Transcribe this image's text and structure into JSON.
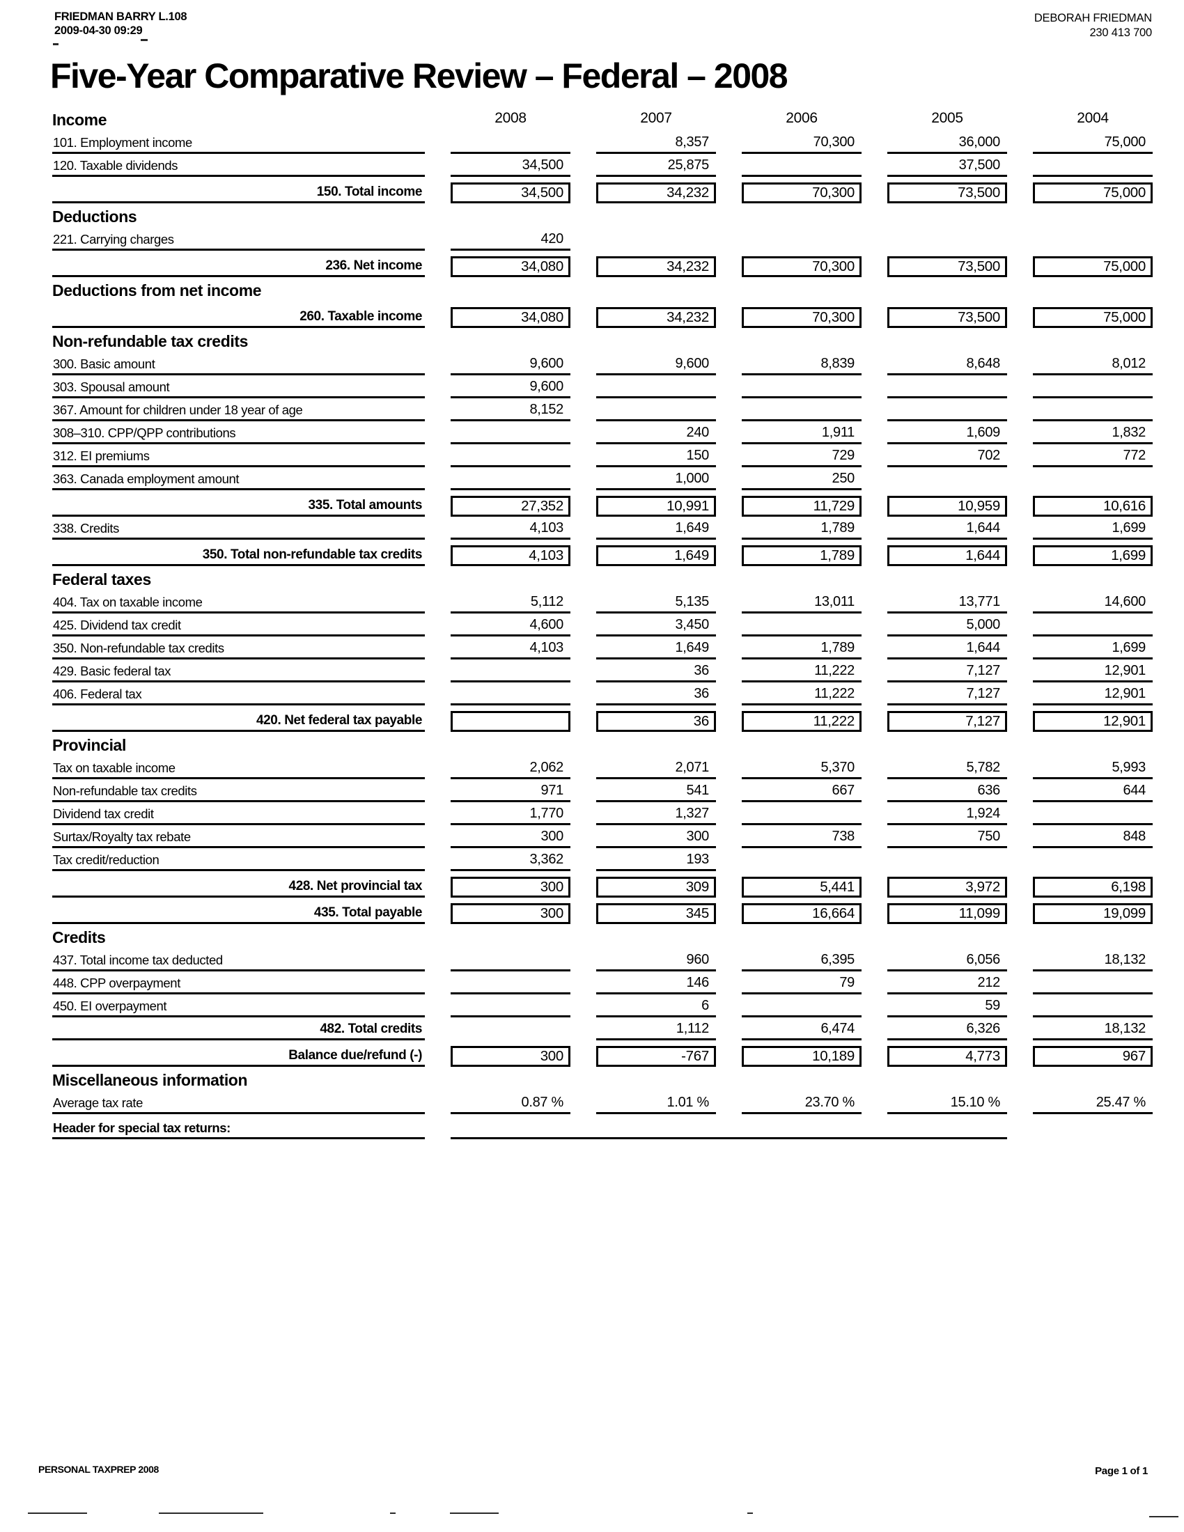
{
  "header": {
    "taxpayer_name": "FRIEDMAN BARRY L.108",
    "print_datetime": "2009-04-30 09:29",
    "spouse_name": "DEBORAH FRIEDMAN",
    "spouse_sin": "230 413 700"
  },
  "title": "Five-Year Comparative Review – Federal – 2008",
  "years": [
    "2008",
    "2007",
    "2006",
    "2005",
    "2004"
  ],
  "sections": [
    {
      "title": "Income",
      "rows": [
        {
          "type": "item",
          "label": "101. Employment income",
          "values": [
            "",
            "8,357",
            "70,300",
            "36,000",
            "75,000"
          ]
        },
        {
          "type": "item",
          "label": "120. Taxable dividends",
          "values": [
            "34,500",
            "25,875",
            "",
            "37,500",
            ""
          ]
        },
        {
          "type": "total",
          "label": "150. Total income",
          "values": [
            "34,500",
            "34,232",
            "70,300",
            "73,500",
            "75,000"
          ]
        }
      ]
    },
    {
      "title": "Deductions",
      "rows": [
        {
          "type": "item",
          "label": "221. Carrying charges",
          "values": [
            "420",
            "",
            "",
            "",
            ""
          ],
          "ul": [
            true,
            false,
            false,
            false,
            false
          ]
        },
        {
          "type": "total",
          "label": "236. Net income",
          "values": [
            "34,080",
            "34,232",
            "70,300",
            "73,500",
            "75,000"
          ]
        }
      ]
    },
    {
      "title": "Deductions from net income",
      "rows": [
        {
          "type": "total",
          "label": "260. Taxable income",
          "values": [
            "34,080",
            "34,232",
            "70,300",
            "73,500",
            "75,000"
          ]
        }
      ]
    },
    {
      "title": "Non-refundable tax credits",
      "rows": [
        {
          "type": "item",
          "label": "300. Basic amount",
          "values": [
            "9,600",
            "9,600",
            "8,839",
            "8,648",
            "8,012"
          ]
        },
        {
          "type": "item",
          "label": "303. Spousal amount",
          "values": [
            "9,600",
            "",
            "",
            "",
            ""
          ]
        },
        {
          "type": "item",
          "label": "367. Amount for children under 18 year of age",
          "values": [
            "8,152",
            "",
            "",
            "",
            ""
          ]
        },
        {
          "type": "item",
          "label": "308–310. CPP/QPP contributions",
          "values": [
            "",
            "240",
            "1,911",
            "1,609",
            "1,832"
          ]
        },
        {
          "type": "item",
          "label": "312. EI premiums",
          "values": [
            "",
            "150",
            "729",
            "702",
            "772"
          ]
        },
        {
          "type": "item",
          "label": "363. Canada employment amount",
          "values": [
            "",
            "1,000",
            "250",
            "",
            ""
          ],
          "ul": [
            true,
            true,
            true,
            false,
            false
          ]
        },
        {
          "type": "total",
          "label": "335. Total amounts",
          "values": [
            "27,352",
            "10,991",
            "11,729",
            "10,959",
            "10,616"
          ]
        },
        {
          "type": "item",
          "label": "338. Credits",
          "values": [
            "4,103",
            "1,649",
            "1,789",
            "1,644",
            "1,699"
          ]
        },
        {
          "type": "total",
          "label": "350. Total non-refundable tax credits",
          "values": [
            "4,103",
            "1,649",
            "1,789",
            "1,644",
            "1,699"
          ]
        }
      ]
    },
    {
      "title": "Federal taxes",
      "rows": [
        {
          "type": "item",
          "label": "404. Tax on taxable income",
          "values": [
            "5,112",
            "5,135",
            "13,011",
            "13,771",
            "14,600"
          ]
        },
        {
          "type": "item",
          "label": "425. Dividend tax credit",
          "values": [
            "4,600",
            "3,450",
            "",
            "5,000",
            ""
          ]
        },
        {
          "type": "item",
          "label": "350. Non-refundable tax credits",
          "values": [
            "4,103",
            "1,649",
            "1,789",
            "1,644",
            "1,699"
          ]
        },
        {
          "type": "item",
          "label": "429. Basic federal tax",
          "values": [
            "",
            "36",
            "11,222",
            "7,127",
            "12,901"
          ]
        },
        {
          "type": "item",
          "label": "406. Federal tax",
          "values": [
            "",
            "36",
            "11,222",
            "7,127",
            "12,901"
          ]
        },
        {
          "type": "total",
          "label": "420. Net federal tax payable",
          "values": [
            "",
            "36",
            "11,222",
            "7,127",
            "12,901"
          ]
        }
      ]
    },
    {
      "title": "Provincial",
      "rows": [
        {
          "type": "item",
          "label": "Tax on taxable income",
          "values": [
            "2,062",
            "2,071",
            "5,370",
            "5,782",
            "5,993"
          ]
        },
        {
          "type": "item",
          "label": "Non-refundable tax credits",
          "values": [
            "971",
            "541",
            "667",
            "636",
            "644"
          ]
        },
        {
          "type": "item",
          "label": "Dividend tax credit",
          "values": [
            "1,770",
            "1,327",
            "",
            "1,924",
            ""
          ]
        },
        {
          "type": "item",
          "label": "Surtax/Royalty tax rebate",
          "values": [
            "300",
            "300",
            "738",
            "750",
            "848"
          ]
        },
        {
          "type": "item",
          "label": "Tax credit/reduction",
          "values": [
            "3,362",
            "193",
            "",
            "",
            ""
          ],
          "ul": [
            true,
            true,
            false,
            false,
            false
          ]
        },
        {
          "type": "total",
          "label": "428. Net provincial tax",
          "values": [
            "300",
            "309",
            "5,441",
            "3,972",
            "6,198"
          ]
        },
        {
          "type": "total",
          "label": "435. Total payable",
          "values": [
            "300",
            "345",
            "16,664",
            "11,099",
            "19,099"
          ]
        }
      ]
    },
    {
      "title": "Credits",
      "rows": [
        {
          "type": "item",
          "label": "437. Total income tax deducted",
          "values": [
            "",
            "960",
            "6,395",
            "6,056",
            "18,132"
          ]
        },
        {
          "type": "item",
          "label": "448. CPP overpayment",
          "values": [
            "",
            "146",
            "79",
            "212",
            ""
          ]
        },
        {
          "type": "item",
          "label": "450. EI overpayment",
          "values": [
            "",
            "6",
            "",
            "59",
            ""
          ]
        },
        {
          "type": "subtotal",
          "label": "482. Total credits",
          "values": [
            "",
            "1,112",
            "6,474",
            "6,326",
            "18,132"
          ],
          "ul": [
            false,
            true,
            true,
            true,
            true
          ]
        },
        {
          "type": "total",
          "label": "Balance due/refund (-)",
          "values": [
            "300",
            "-767",
            "10,189",
            "4,773",
            "967"
          ]
        }
      ]
    },
    {
      "title": "Miscellaneous information",
      "rows": [
        {
          "type": "item",
          "label": "Average tax rate",
          "values": [
            "0.87 %",
            "1.01 %",
            "23.70 %",
            "15.10 %",
            "25.47 %"
          ]
        },
        {
          "type": "special",
          "label": "Header for special tax returns:"
        }
      ]
    }
  ],
  "footer": {
    "app_name": "PERSONAL TAXPREP 2008",
    "page_number": "Page 1 of 1"
  }
}
